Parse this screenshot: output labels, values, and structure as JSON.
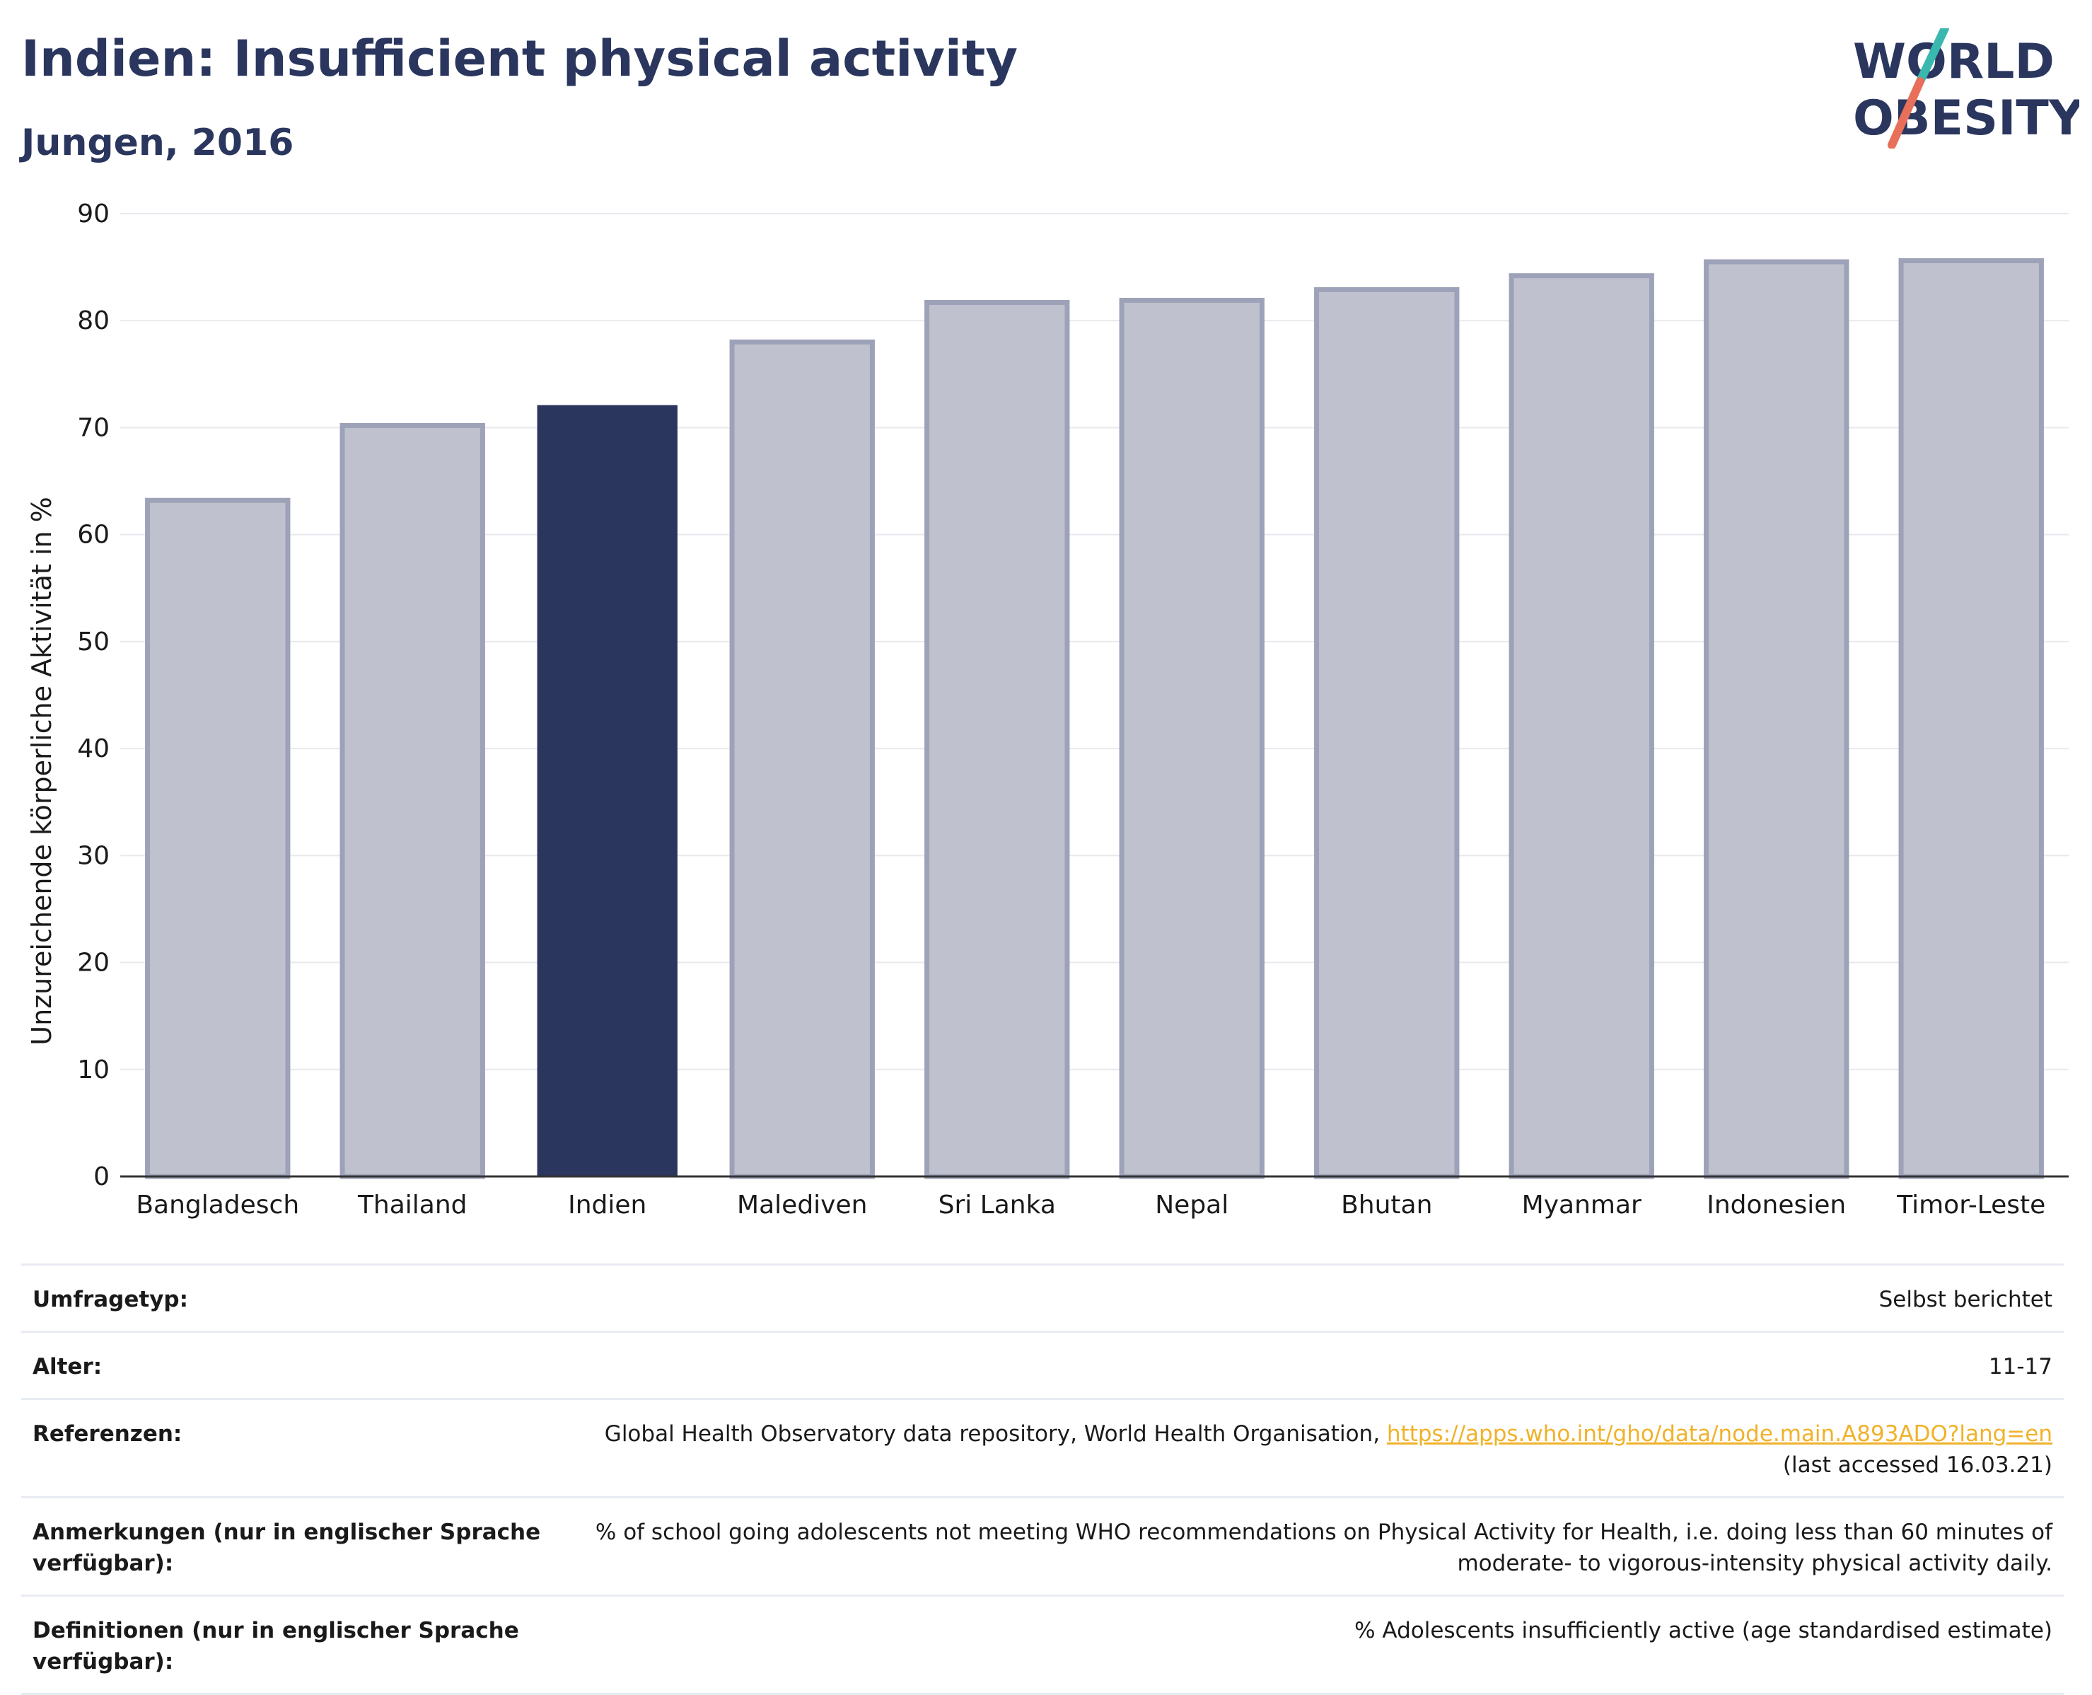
{
  "header": {
    "title": "Indien: Insufficient physical activity",
    "subtitle": "Jungen, 2016"
  },
  "logo": {
    "line1": "WORLD",
    "line2": "OBESITY",
    "colors": {
      "text": "#2a365e",
      "slash_top": "#3ab8b0",
      "slash_bottom": "#e8705a"
    }
  },
  "chart_data": {
    "type": "bar",
    "categories": [
      "Bangladesch",
      "Thailand",
      "Indien",
      "Malediven",
      "Sri Lanka",
      "Nepal",
      "Bhutan",
      "Myanmar",
      "Indonesien",
      "Timor-Leste"
    ],
    "values": [
      63.2,
      70.2,
      72.1,
      78.0,
      81.7,
      81.9,
      82.9,
      84.2,
      85.5,
      85.6
    ],
    "highlight": "Indien",
    "ylabel": "Unzureichende körperliche Aktivität in %",
    "xlabel": "",
    "ylim": [
      0,
      90
    ],
    "yticks": [
      0,
      10,
      20,
      30,
      40,
      50,
      60,
      70,
      80,
      90
    ],
    "grid": true,
    "colors": {
      "bar": "#bfc2ce",
      "bar_border": "#9da2b8",
      "highlight": "#2a365e",
      "grid": "#e8e8ee",
      "axis": "#333333"
    }
  },
  "info_table": [
    {
      "label": "Umfragetyp:",
      "value": "Selbst berichtet"
    },
    {
      "label": "Alter:",
      "value": "11-17"
    },
    {
      "label": "Referenzen:",
      "value": "Global Health Observatory data repository, World Health Organisation, ",
      "link": "https://apps.who.int/gho/data/node.main.A893ADO?lang=en",
      "value_after": "(last accessed 16.03.21)"
    },
    {
      "label": "Anmerkungen (nur in englischer Sprache verfügbar):",
      "value": "% of school going adolescents not meeting WHO recommendations on Physical Activity for Health, i.e. doing less than 60 minutes of moderate- to vigorous-intensity physical activity daily."
    },
    {
      "label": "Definitionen (nur in englischer Sprache verfügbar):",
      "value": "% Adolescents insufficiently active (age standardised estimate)"
    }
  ]
}
